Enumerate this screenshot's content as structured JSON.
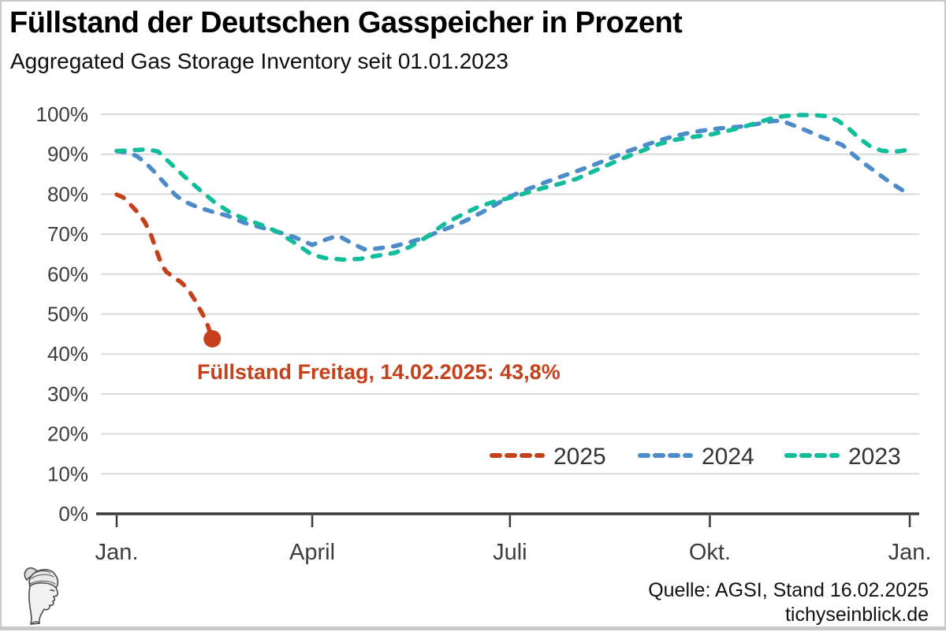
{
  "header": {
    "title": "Füllstand der Deutschen Gasspeicher in Prozent",
    "subtitle": "Aggregated Gas Storage Inventory seit 01.01.2023"
  },
  "annotation": {
    "text": "Füllstand Freitag, 14.02.2025: 43,8%",
    "marker_value": "43,8%"
  },
  "footer": {
    "source_line1": "Quelle: AGSI, Stand 16.02.2025",
    "source_line2": "tichyseinblick.de",
    "logo_icon": "hermes-head-logo"
  },
  "colors": {
    "accent_orange": "#c5411b",
    "accent_blue": "#4d8cc9",
    "accent_teal": "#12bd9c",
    "gridline": "#d9d9d9",
    "axis": "#3a3a3a",
    "tick_label": "#3d3d3d",
    "legend_text": "#333333"
  },
  "chart_data": {
    "type": "line",
    "title": "Füllstand der Deutschen Gasspeicher in Prozent",
    "subtitle": "Aggregated Gas Storage Inventory seit 01.01.2023",
    "line_style": "dashed",
    "grid": "horizontal",
    "legend_position": "inside-bottom-right",
    "x_unit": "day_of_year",
    "x_tick_days": [
      1,
      91,
      182,
      274,
      366
    ],
    "x_tick_labels": [
      "Jan.",
      "April",
      "Juli",
      "Okt.",
      "Jan."
    ],
    "y_tick_values": [
      0,
      10,
      20,
      30,
      40,
      50,
      60,
      70,
      80,
      90,
      100
    ],
    "y_tick_labels": [
      "0%",
      "10%",
      "20%",
      "30%",
      "40%",
      "50%",
      "60%",
      "70%",
      "80%",
      "90%",
      "100%"
    ],
    "ylim": [
      0,
      100
    ],
    "series": [
      {
        "name": "2025",
        "color": "#c5411b",
        "endpoint_marker": {
          "day": 45,
          "value": 43.8,
          "date": "14.02.2025"
        },
        "points": [
          [
            1,
            79.9
          ],
          [
            4,
            79.2
          ],
          [
            8,
            77.0
          ],
          [
            11,
            75.2
          ],
          [
            14,
            73.0
          ],
          [
            17,
            69.5
          ],
          [
            20,
            64.8
          ],
          [
            22,
            62.0
          ],
          [
            24,
            60.5
          ],
          [
            27,
            59.3
          ],
          [
            31,
            57.8
          ],
          [
            34,
            56.0
          ],
          [
            37,
            53.5
          ],
          [
            41,
            49.5
          ],
          [
            43,
            47.0
          ],
          [
            45,
            43.8
          ]
        ]
      },
      {
        "name": "2024",
        "color": "#4d8cc9",
        "points": [
          [
            1,
            90.8
          ],
          [
            6,
            90.4
          ],
          [
            10,
            89.6
          ],
          [
            14,
            88.0
          ],
          [
            18,
            85.8
          ],
          [
            23,
            82.8
          ],
          [
            28,
            79.8
          ],
          [
            32,
            78.2
          ],
          [
            38,
            76.8
          ],
          [
            45,
            75.6
          ],
          [
            52,
            74.6
          ],
          [
            60,
            72.8
          ],
          [
            68,
            71.6
          ],
          [
            75,
            70.6
          ],
          [
            83,
            69.2
          ],
          [
            91,
            67.3
          ],
          [
            98,
            68.8
          ],
          [
            103,
            69.6
          ],
          [
            109,
            67.8
          ],
          [
            115,
            66.2
          ],
          [
            121,
            66.4
          ],
          [
            129,
            67.0
          ],
          [
            136,
            68.0
          ],
          [
            143,
            69.2
          ],
          [
            150,
            70.8
          ],
          [
            157,
            72.2
          ],
          [
            164,
            74.0
          ],
          [
            171,
            76.0
          ],
          [
            178,
            78.2
          ],
          [
            182,
            79.4
          ],
          [
            190,
            81.2
          ],
          [
            197,
            82.7
          ],
          [
            205,
            84.3
          ],
          [
            213,
            85.8
          ],
          [
            220,
            87.2
          ],
          [
            227,
            88.7
          ],
          [
            235,
            90.5
          ],
          [
            244,
            92.2
          ],
          [
            251,
            93.5
          ],
          [
            258,
            94.6
          ],
          [
            266,
            95.5
          ],
          [
            274,
            96.2
          ],
          [
            281,
            96.6
          ],
          [
            288,
            96.9
          ],
          [
            296,
            97.6
          ],
          [
            303,
            98.3
          ],
          [
            307,
            98.4
          ],
          [
            313,
            97.1
          ],
          [
            319,
            95.8
          ],
          [
            325,
            94.4
          ],
          [
            331,
            93.2
          ],
          [
            335,
            92.3
          ],
          [
            340,
            89.9
          ],
          [
            345,
            87.7
          ],
          [
            350,
            85.7
          ],
          [
            355,
            83.7
          ],
          [
            360,
            81.9
          ],
          [
            365,
            80.2
          ]
        ]
      },
      {
        "name": "2023",
        "color": "#12bd9c",
        "points": [
          [
            1,
            90.8
          ],
          [
            8,
            91.0
          ],
          [
            15,
            91.2
          ],
          [
            20,
            90.7
          ],
          [
            26,
            87.6
          ],
          [
            32,
            84.5
          ],
          [
            39,
            81.2
          ],
          [
            46,
            78.0
          ],
          [
            53,
            75.5
          ],
          [
            60,
            73.8
          ],
          [
            68,
            72.2
          ],
          [
            75,
            70.6
          ],
          [
            83,
            67.8
          ],
          [
            91,
            64.8
          ],
          [
            98,
            63.9
          ],
          [
            106,
            63.6
          ],
          [
            113,
            63.8
          ],
          [
            121,
            64.6
          ],
          [
            129,
            65.3
          ],
          [
            136,
            66.8
          ],
          [
            144,
            69.4
          ],
          [
            152,
            72.6
          ],
          [
            160,
            74.9
          ],
          [
            167,
            76.7
          ],
          [
            174,
            78.0
          ],
          [
            182,
            79.1
          ],
          [
            190,
            80.4
          ],
          [
            197,
            81.5
          ],
          [
            205,
            82.6
          ],
          [
            213,
            83.9
          ],
          [
            220,
            85.6
          ],
          [
            227,
            87.3
          ],
          [
            235,
            89.2
          ],
          [
            244,
            91.1
          ],
          [
            251,
            92.6
          ],
          [
            258,
            93.6
          ],
          [
            266,
            94.3
          ],
          [
            274,
            94.9
          ],
          [
            281,
            95.7
          ],
          [
            288,
            96.6
          ],
          [
            296,
            97.9
          ],
          [
            303,
            99.1
          ],
          [
            309,
            99.6
          ],
          [
            316,
            99.8
          ],
          [
            322,
            99.8
          ],
          [
            328,
            99.5
          ],
          [
            333,
            98.4
          ],
          [
            338,
            96.4
          ],
          [
            343,
            93.9
          ],
          [
            348,
            91.9
          ],
          [
            353,
            90.9
          ],
          [
            358,
            90.6
          ],
          [
            362,
            90.8
          ],
          [
            365,
            91.1
          ]
        ]
      }
    ]
  }
}
